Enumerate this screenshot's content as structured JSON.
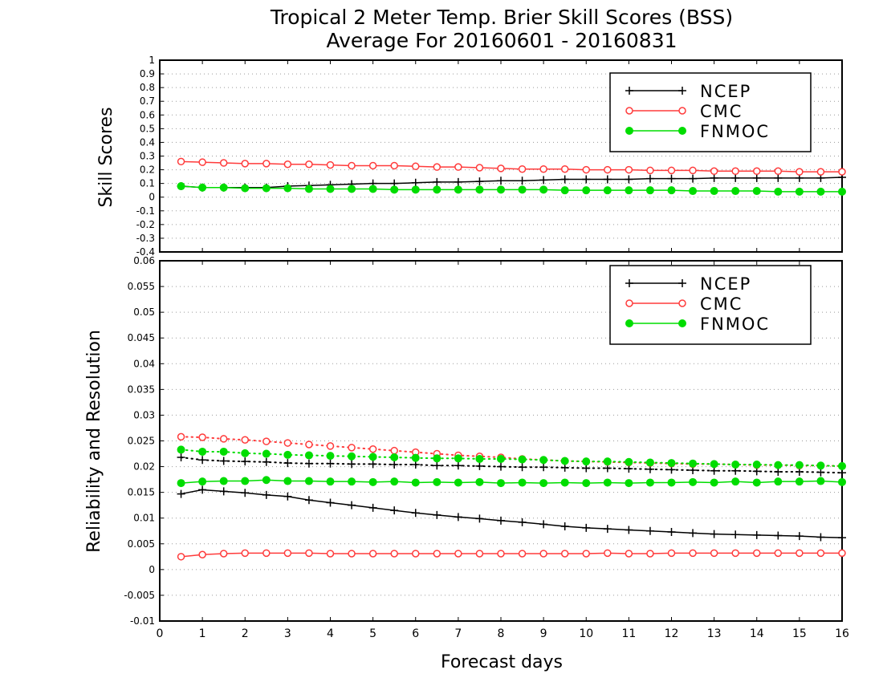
{
  "chart_data": [
    {
      "type": "line",
      "title": "Tropical 2 Meter Temp. Brier Skill Scores (BSS)",
      "subtitle": "Average For 20160601 - 20160831",
      "xlabel": "",
      "ylabel": "Skill Scores",
      "ylim": [
        -0.4,
        1
      ],
      "yticks": [
        "-0.4",
        "-0.3",
        "-0.2",
        "-0.1",
        "0",
        "0.1",
        "0.2",
        "0.3",
        "0.4",
        "0.5",
        "0.6",
        "0.7",
        "0.8",
        "0.9",
        "1"
      ],
      "grid": true,
      "legend": "top-right",
      "x": [
        0.5,
        1,
        1.5,
        2,
        2.5,
        3,
        3.5,
        4,
        4.5,
        5,
        5.5,
        6,
        6.5,
        7,
        7.5,
        8,
        8.5,
        9,
        9.5,
        10,
        10.5,
        11,
        11.5,
        12,
        12.5,
        13,
        13.5,
        14,
        14.5,
        15,
        15.5,
        16
      ],
      "series": [
        {
          "name": "NCEP",
          "color": "#000000",
          "marker": "plus",
          "values": [
            0.08,
            0.07,
            0.07,
            0.07,
            0.07,
            0.08,
            0.085,
            0.09,
            0.095,
            0.1,
            0.1,
            0.105,
            0.11,
            0.11,
            0.115,
            0.12,
            0.12,
            0.125,
            0.13,
            0.13,
            0.13,
            0.13,
            0.135,
            0.135,
            0.135,
            0.14,
            0.14,
            0.14,
            0.14,
            0.14,
            0.14,
            0.145
          ]
        },
        {
          "name": "CMC",
          "color": "#ff3b3b",
          "marker": "open-circle",
          "values": [
            0.26,
            0.255,
            0.25,
            0.245,
            0.245,
            0.24,
            0.24,
            0.235,
            0.23,
            0.23,
            0.23,
            0.225,
            0.22,
            0.22,
            0.215,
            0.21,
            0.205,
            0.205,
            0.205,
            0.2,
            0.2,
            0.2,
            0.195,
            0.195,
            0.195,
            0.19,
            0.19,
            0.19,
            0.19,
            0.185,
            0.185,
            0.185
          ]
        },
        {
          "name": "FNMOC",
          "color": "#00dd00",
          "marker": "filled-circle",
          "values": [
            0.08,
            0.07,
            0.07,
            0.065,
            0.065,
            0.065,
            0.06,
            0.06,
            0.06,
            0.06,
            0.055,
            0.055,
            0.055,
            0.055,
            0.055,
            0.055,
            0.055,
            0.055,
            0.05,
            0.05,
            0.05,
            0.05,
            0.05,
            0.05,
            0.045,
            0.045,
            0.045,
            0.045,
            0.04,
            0.04,
            0.04,
            0.04
          ]
        }
      ]
    },
    {
      "type": "line",
      "title": "",
      "xlabel": "Forecast days",
      "ylabel": "Reliability and Resolution",
      "xlim": [
        0,
        16
      ],
      "xticks": [
        "0",
        "1",
        "2",
        "3",
        "4",
        "5",
        "6",
        "7",
        "8",
        "9",
        "10",
        "11",
        "12",
        "13",
        "14",
        "15",
        "16"
      ],
      "ylim": [
        -0.01,
        0.06
      ],
      "yticks": [
        "-0.01",
        "-0.005",
        "0",
        "0.005",
        "0.01",
        "0.015",
        "0.02",
        "0.025",
        "0.03",
        "0.035",
        "0.04",
        "0.045",
        "0.05",
        "0.055",
        "0.06"
      ],
      "grid": true,
      "legend": "top-right",
      "x": [
        0.5,
        1,
        1.5,
        2,
        2.5,
        3,
        3.5,
        4,
        4.5,
        5,
        5.5,
        6,
        6.5,
        7,
        7.5,
        8,
        8.5,
        9,
        9.5,
        10,
        10.5,
        11,
        11.5,
        12,
        12.5,
        13,
        13.5,
        14,
        14.5,
        15,
        15.5,
        16
      ],
      "series": [
        {
          "name": "NCEP",
          "color": "#000000",
          "marker": "plus",
          "line": "solid",
          "values": [
            0.0147,
            0.0155,
            0.0152,
            0.0149,
            0.0145,
            0.0142,
            0.0135,
            0.013,
            0.0125,
            0.012,
            0.0115,
            0.011,
            0.0106,
            0.0102,
            0.0099,
            0.0095,
            0.0092,
            0.0088,
            0.0084,
            0.0081,
            0.0079,
            0.0077,
            0.0075,
            0.0073,
            0.0071,
            0.0069,
            0.0068,
            0.0067,
            0.0066,
            0.0065,
            0.0063,
            0.0062
          ]
        },
        {
          "name": "NCEP",
          "color": "#000000",
          "marker": "plus",
          "line": "dotted",
          "values": [
            0.0218,
            0.0213,
            0.0211,
            0.021,
            0.0209,
            0.0207,
            0.0206,
            0.0206,
            0.0205,
            0.0205,
            0.0204,
            0.0204,
            0.0202,
            0.0202,
            0.0201,
            0.02,
            0.0199,
            0.0199,
            0.0198,
            0.0197,
            0.0197,
            0.0196,
            0.0195,
            0.0194,
            0.0193,
            0.0192,
            0.0192,
            0.0191,
            0.019,
            0.019,
            0.0189,
            0.0188
          ]
        },
        {
          "name": "CMC",
          "color": "#ff3b3b",
          "marker": "open-circle",
          "line": "solid",
          "values": [
            0.0025,
            0.0029,
            0.0031,
            0.0032,
            0.0032,
            0.0032,
            0.0032,
            0.0031,
            0.0031,
            0.0031,
            0.0031,
            0.0031,
            0.0031,
            0.0031,
            0.0031,
            0.0031,
            0.0031,
            0.0031,
            0.0031,
            0.0031,
            0.0032,
            0.0031,
            0.0031,
            0.0032,
            0.0032,
            0.0032,
            0.0032,
            0.0032,
            0.0032,
            0.0032,
            0.0032,
            0.0032
          ]
        },
        {
          "name": "CMC",
          "color": "#ff3b3b",
          "marker": "open-circle",
          "line": "dotted",
          "values": [
            0.0258,
            0.0257,
            0.0254,
            0.0252,
            0.0249,
            0.0246,
            0.0243,
            0.024,
            0.0237,
            0.0234,
            0.0231,
            0.0228,
            0.0225,
            0.0222,
            0.022,
            0.0218,
            0.0215,
            0.0213,
            0.0211,
            0.021,
            0.0209,
            0.0208,
            0.0207,
            0.0206,
            0.0205,
            0.0205,
            0.0204,
            0.0203,
            0.0203,
            0.0202,
            0.0202,
            0.0201
          ]
        },
        {
          "name": "FNMOC",
          "color": "#00dd00",
          "marker": "filled-circle",
          "line": "solid",
          "values": [
            0.0168,
            0.0171,
            0.0172,
            0.0172,
            0.0174,
            0.0172,
            0.0172,
            0.0171,
            0.0171,
            0.017,
            0.0171,
            0.0169,
            0.017,
            0.0169,
            0.017,
            0.0168,
            0.0169,
            0.0168,
            0.0169,
            0.0168,
            0.0169,
            0.0168,
            0.0169,
            0.0169,
            0.017,
            0.0169,
            0.0171,
            0.0169,
            0.0171,
            0.0171,
            0.0172,
            0.017
          ]
        },
        {
          "name": "FNMOC",
          "color": "#00dd00",
          "marker": "filled-circle",
          "line": "dotted",
          "values": [
            0.0233,
            0.0229,
            0.0229,
            0.0226,
            0.0225,
            0.0223,
            0.0222,
            0.0221,
            0.022,
            0.0219,
            0.0218,
            0.0217,
            0.0216,
            0.0216,
            0.0215,
            0.0215,
            0.0214,
            0.0213,
            0.0211,
            0.021,
            0.021,
            0.0209,
            0.0208,
            0.0207,
            0.0206,
            0.0205,
            0.0204,
            0.0204,
            0.0203,
            0.0203,
            0.0202,
            0.0201
          ]
        }
      ]
    }
  ]
}
